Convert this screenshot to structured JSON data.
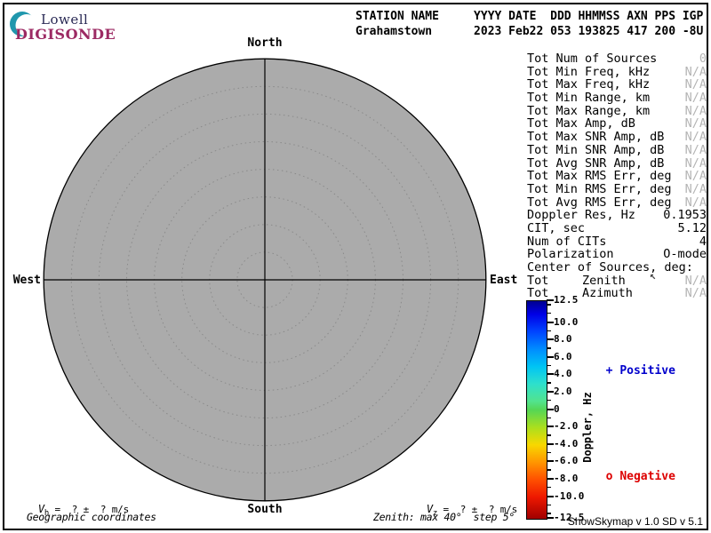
{
  "header": {
    "logo": {
      "line1": "Lowell",
      "line2": "DIGISONDE",
      "crescent_color": "#2097ad",
      "lowell_color": "#2a2a55",
      "digisonde_color": "#9c2a63"
    },
    "line1": "STATION NAME     YYYY DATE  DDD HHMMSS AXN PPS IGP",
    "line2": "Grahamstown      2023 Feb22 053 193825 417 200 -8U"
  },
  "skymap": {
    "labels": {
      "north": "North",
      "south": "South",
      "east": "East",
      "west": "West"
    },
    "zenith_max_deg": 40,
    "zenith_step_deg": 5,
    "rings": 8,
    "fill_color": "#ababab",
    "ring_color": "#8a8a8a"
  },
  "stats": {
    "rows": [
      {
        "label": "Tot Num of Sources",
        "value": "0",
        "muted": true
      },
      {
        "label": "Tot Min Freq, kHz",
        "value": "N/A",
        "muted": true
      },
      {
        "label": "Tot Max Freq, kHz",
        "value": "N/A",
        "muted": true
      },
      {
        "label": "Tot Min Range, km",
        "value": "N/A",
        "muted": true
      },
      {
        "label": "Tot Max Range, km",
        "value": "N/A",
        "muted": true
      },
      {
        "label": "Tot Max Amp, dB",
        "value": "N/A",
        "muted": true
      },
      {
        "label": "Tot Max SNR Amp, dB",
        "value": "N/A",
        "muted": true
      },
      {
        "label": "Tot Min SNR Amp, dB",
        "value": "N/A",
        "muted": true
      },
      {
        "label": "Tot Avg SNR Amp, dB",
        "value": "N/A",
        "muted": true
      },
      {
        "label": "Tot Max RMS Err, deg",
        "value": "N/A",
        "muted": true
      },
      {
        "label": "Tot Min RMS Err, deg",
        "value": "N/A",
        "muted": true
      },
      {
        "label": "Tot Avg RMS Err, deg",
        "value": "N/A",
        "muted": true
      },
      {
        "label": "Doppler Res, Hz",
        "value": "0.1953",
        "muted": false
      },
      {
        "label": "CIT, sec",
        "value": "5.12",
        "muted": false
      },
      {
        "label": "Num of CITs",
        "value": "4",
        "muted": false
      },
      {
        "label": "Polarization",
        "value": "O-mode",
        "muted": false
      },
      {
        "label": "Center of Sources, deg:",
        "value": "",
        "muted": false
      },
      {
        "label": "Tot",
        "mid": "Zenith",
        "value": "N/A",
        "muted": true
      },
      {
        "label": "Tot",
        "mid": "Azimuth",
        "value": "N/A",
        "muted": true
      }
    ]
  },
  "colorbar": {
    "axis_label": "Doppler, Hz",
    "max": 12.5,
    "min": -12.5,
    "major_ticks": [
      12.5,
      10,
      8,
      6,
      4,
      2,
      0,
      -2,
      -4,
      -6,
      -8,
      -10,
      -12.5
    ],
    "tick_labels": [
      "12.5",
      "10.0",
      "8.0",
      "6.0",
      "4.0",
      "2.0",
      "0",
      "-2.0",
      "-4.0",
      "-6.0",
      "-8.0",
      "-10.0",
      "-12.5"
    ],
    "minor_ticks": [
      12,
      11,
      9,
      7,
      5,
      3,
      1,
      -1,
      -3,
      -5,
      -7,
      -9,
      -11,
      -12
    ],
    "legend": {
      "positive_marker": "+",
      "positive_label": "Positive",
      "positive_color": "#0000cc",
      "negative_marker": "o",
      "negative_label": "Negative",
      "negative_color": "#dd0000"
    }
  },
  "footer": {
    "vh": {
      "prefix": "V",
      "sub": "h",
      "rest": " =  ? ±  ? m/s"
    },
    "vz": {
      "prefix": "V",
      "sub": "z",
      "rest": " =  ? ±  ? m/s"
    },
    "coords_label": "Geographic coordinates",
    "zenith_label": "Zenith: max 40°  step 5°",
    "version": "ShowSkymap v 1.0   SD v 5.1"
  },
  "cursor": {
    "glyph": "↖"
  }
}
